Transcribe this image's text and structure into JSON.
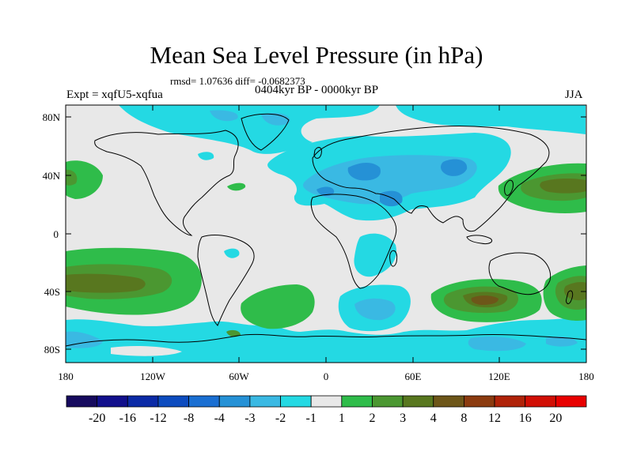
{
  "title": "Mean Sea Level Pressure (in hPa)",
  "stats_text": "rmsd= 1.07636 diff= -0.0682373",
  "experiment_label": "Expt = xqfU5-xqfua",
  "period_label": "0404kyr BP - 0000kyr BP",
  "season_label": "JJA",
  "lat_labels": [
    "80N",
    "40N",
    "0",
    "40S",
    "80S"
  ],
  "lon_labels": [
    "180",
    "120W",
    "60W",
    "0",
    "60E",
    "120E",
    "180"
  ],
  "colorbar": {
    "labels": [
      "-20",
      "-16",
      "-12",
      "-8",
      "-4",
      "-3",
      "-2",
      "-1",
      "1",
      "2",
      "3",
      "4",
      "8",
      "12",
      "16",
      "20"
    ],
    "colors": [
      "#160a5e",
      "#12108c",
      "#0b2aa6",
      "#0d4cbf",
      "#1a6fd2",
      "#2591d6",
      "#3ab9e3",
      "#24d9e3",
      "#e8e8e8",
      "#2fbc4a",
      "#4b9731",
      "#58771f",
      "#6d5619",
      "#8b3b10",
      "#b02309",
      "#d10f05",
      "#e80000"
    ]
  },
  "colors": {
    "land_mask_bg": "#e8e8e8",
    "cyan_minus1": "#24d9e3",
    "blue_minus2": "#3ab9e3",
    "blue_minus3": "#2591d6",
    "green_1": "#2fbc4a",
    "green_2": "#4b9731",
    "olive_3": "#58771f",
    "brown_4": "#6d5619"
  }
}
